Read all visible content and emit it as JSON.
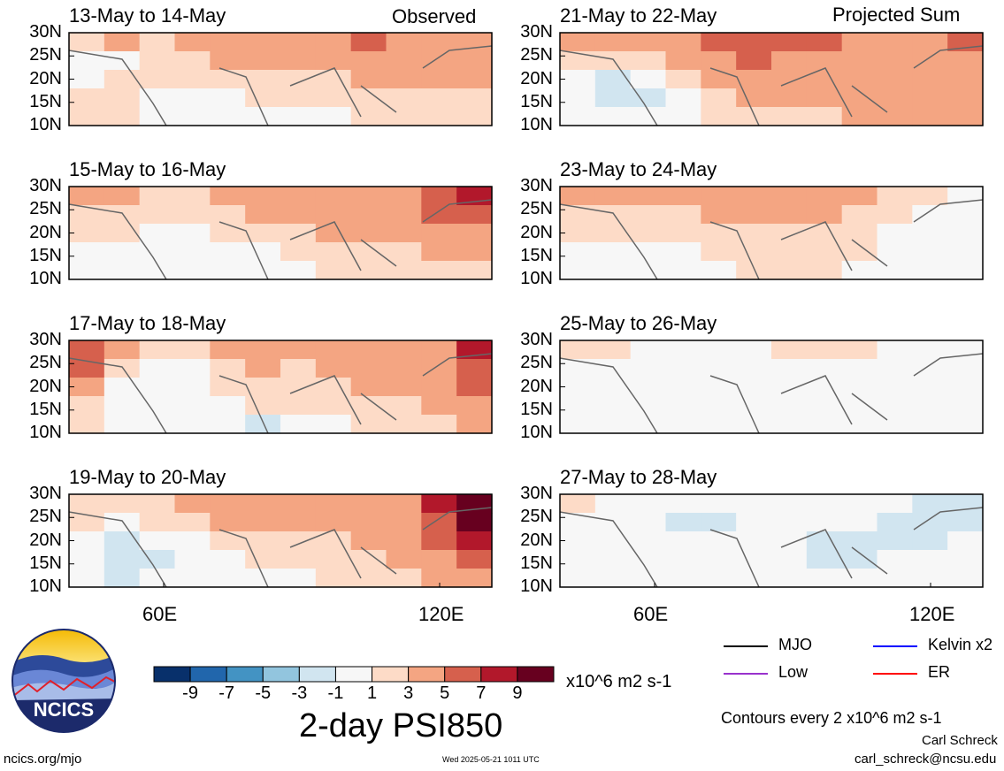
{
  "page": {
    "observed_label": "Observed",
    "projected_label": "Projected Sum",
    "main_title": "2-day PSI850",
    "units": "x10^6 m2 s-1",
    "contour_note": "Contours every 2 x10^6 m2 s-1",
    "author": "Carl Schreck",
    "email": "carl_schreck@ncsu.edu",
    "url": "ncics.org/mjo",
    "timestamp": "Wed 2025-05-21 1011 UTC",
    "logo_text": "NCICS"
  },
  "legend": [
    {
      "label": "MJO",
      "color": "#000000"
    },
    {
      "label": "Kelvin x2",
      "color": "#0000ff"
    },
    {
      "label": "Low",
      "color": "#9932cc"
    },
    {
      "label": "ER",
      "color": "#ff0000"
    }
  ],
  "chart_data": {
    "type": "heatmap",
    "variable": "2-day PSI850",
    "units": "x10^6 m2 s-1",
    "y_ticks": [
      "30N",
      "25N",
      "20N",
      "15N",
      "10N"
    ],
    "x_ticks": [
      "60E",
      "120E"
    ],
    "colorbar": {
      "ticks": [
        "-9",
        "-7",
        "-5",
        "-3",
        "-1",
        "1",
        "3",
        "5",
        "7",
        "9"
      ],
      "colors": [
        "#08306b",
        "#2166ac",
        "#4393c3",
        "#92c5de",
        "#d1e5f0",
        "#f7f7f7",
        "#fddbc7",
        "#f4a582",
        "#d6604d",
        "#b2182b",
        "#67001f"
      ]
    },
    "panels": [
      {
        "title": "13-May to 14-May",
        "column": "left",
        "values": [
          [
            1,
            3,
            2,
            3,
            4,
            4,
            4,
            4,
            5,
            4,
            4,
            4
          ],
          [
            0,
            -1,
            1,
            2,
            3,
            3,
            3,
            3,
            4,
            4,
            4,
            4
          ],
          [
            0,
            1,
            1,
            1,
            1,
            2,
            2,
            2,
            3,
            3,
            3,
            3
          ],
          [
            1,
            1,
            0,
            0,
            0,
            1,
            1,
            1,
            2,
            2,
            2,
            2
          ],
          [
            1,
            1,
            0,
            0,
            -1,
            -1,
            0,
            0,
            1,
            1,
            1,
            1
          ]
        ]
      },
      {
        "title": "15-May to 16-May",
        "column": "left",
        "values": [
          [
            3,
            3,
            2,
            2,
            3,
            4,
            4,
            4,
            4,
            4,
            5,
            7
          ],
          [
            2,
            2,
            1,
            1,
            2,
            3,
            3,
            4,
            4,
            4,
            5,
            6
          ],
          [
            1,
            1,
            0,
            0,
            1,
            1,
            2,
            3,
            3,
            3,
            4,
            4
          ],
          [
            0,
            0,
            0,
            0,
            0,
            0,
            1,
            2,
            2,
            2,
            3,
            3
          ],
          [
            0,
            0,
            0,
            -1,
            -1,
            0,
            0,
            1,
            1,
            1,
            2,
            2
          ]
        ]
      },
      {
        "title": "17-May to 18-May",
        "column": "left",
        "values": [
          [
            6,
            3,
            1,
            1,
            3,
            3,
            3,
            4,
            4,
            4,
            4,
            7
          ],
          [
            5,
            1,
            0,
            -1,
            2,
            3,
            2,
            3,
            4,
            3,
            4,
            6
          ],
          [
            3,
            0,
            -1,
            -1,
            1,
            2,
            2,
            2,
            3,
            3,
            4,
            5
          ],
          [
            2,
            0,
            -1,
            -1,
            0,
            1,
            1,
            1,
            2,
            2,
            3,
            4
          ],
          [
            1,
            0,
            0,
            -1,
            -1,
            -2,
            0,
            0,
            1,
            1,
            2,
            3
          ]
        ]
      },
      {
        "title": "19-May to 20-May",
        "column": "left",
        "values": [
          [
            2,
            2,
            2,
            3,
            3,
            3,
            4,
            3,
            3,
            4,
            7,
            9
          ],
          [
            1,
            0,
            1,
            2,
            3,
            3,
            3,
            3,
            3,
            4,
            6,
            9
          ],
          [
            0,
            -2,
            -1,
            0,
            1,
            2,
            2,
            2,
            3,
            4,
            5,
            7
          ],
          [
            -1,
            -3,
            -2,
            -1,
            0,
            1,
            1,
            2,
            2,
            3,
            4,
            5
          ],
          [
            0,
            -2,
            -1,
            -1,
            0,
            0,
            0,
            1,
            1,
            2,
            3,
            3
          ]
        ]
      },
      {
        "title": "21-May to 22-May",
        "column": "right",
        "values": [
          [
            3,
            3,
            3,
            4,
            5,
            6,
            5,
            5,
            4,
            4,
            4,
            6
          ],
          [
            2,
            1,
            2,
            3,
            4,
            5,
            4,
            4,
            4,
            4,
            4,
            4
          ],
          [
            0,
            -2,
            -1,
            2,
            3,
            4,
            4,
            4,
            4,
            4,
            4,
            4
          ],
          [
            0,
            -2,
            -2,
            0,
            2,
            3,
            3,
            3,
            3,
            3,
            3,
            4
          ],
          [
            0,
            -1,
            -1,
            0,
            1,
            2,
            2,
            2,
            3,
            3,
            3,
            4
          ]
        ]
      },
      {
        "title": "23-May to 24-May",
        "column": "right",
        "values": [
          [
            3,
            3,
            3,
            3,
            4,
            4,
            4,
            4,
            3,
            2,
            1,
            0
          ],
          [
            2,
            2,
            2,
            2,
            3,
            3,
            3,
            3,
            2,
            1,
            0,
            0
          ],
          [
            1,
            1,
            1,
            1,
            2,
            2,
            2,
            2,
            1,
            0,
            0,
            0
          ],
          [
            0,
            -1,
            -1,
            0,
            1,
            1,
            1,
            1,
            1,
            0,
            0,
            0
          ],
          [
            0,
            0,
            -1,
            0,
            0,
            1,
            1,
            1,
            0,
            0,
            0,
            0
          ]
        ]
      },
      {
        "title": "25-May to 26-May",
        "column": "right",
        "values": [
          [
            1,
            1,
            0,
            0,
            0,
            0,
            1,
            1,
            1,
            0,
            -1,
            -1
          ],
          [
            0,
            0,
            0,
            0,
            0,
            0,
            0,
            0,
            0,
            0,
            -1,
            -1
          ],
          [
            0,
            0,
            0,
            0,
            0,
            -1,
            0,
            0,
            0,
            -1,
            -1,
            -1
          ],
          [
            0,
            0,
            0,
            0,
            0,
            0,
            0,
            0,
            0,
            0,
            0,
            0
          ],
          [
            0,
            0,
            0,
            0,
            0,
            0,
            0,
            0,
            0,
            0,
            0,
            0
          ]
        ]
      },
      {
        "title": "27-May to 28-May",
        "column": "right",
        "values": [
          [
            1,
            0,
            -1,
            -1,
            -1,
            -1,
            -1,
            -1,
            -1,
            -1,
            -2,
            -2
          ],
          [
            0,
            -1,
            -1,
            -2,
            -2,
            -1,
            -1,
            -1,
            -1,
            -2,
            -2,
            -2
          ],
          [
            0,
            -1,
            -1,
            -1,
            -1,
            -1,
            -1,
            -2,
            -2,
            -2,
            -2,
            -1
          ],
          [
            0,
            0,
            -1,
            -1,
            -1,
            -1,
            -1,
            -2,
            -2,
            -1,
            -1,
            -1
          ],
          [
            0,
            0,
            0,
            0,
            0,
            0,
            -1,
            -1,
            -1,
            0,
            0,
            0
          ]
        ]
      }
    ]
  }
}
